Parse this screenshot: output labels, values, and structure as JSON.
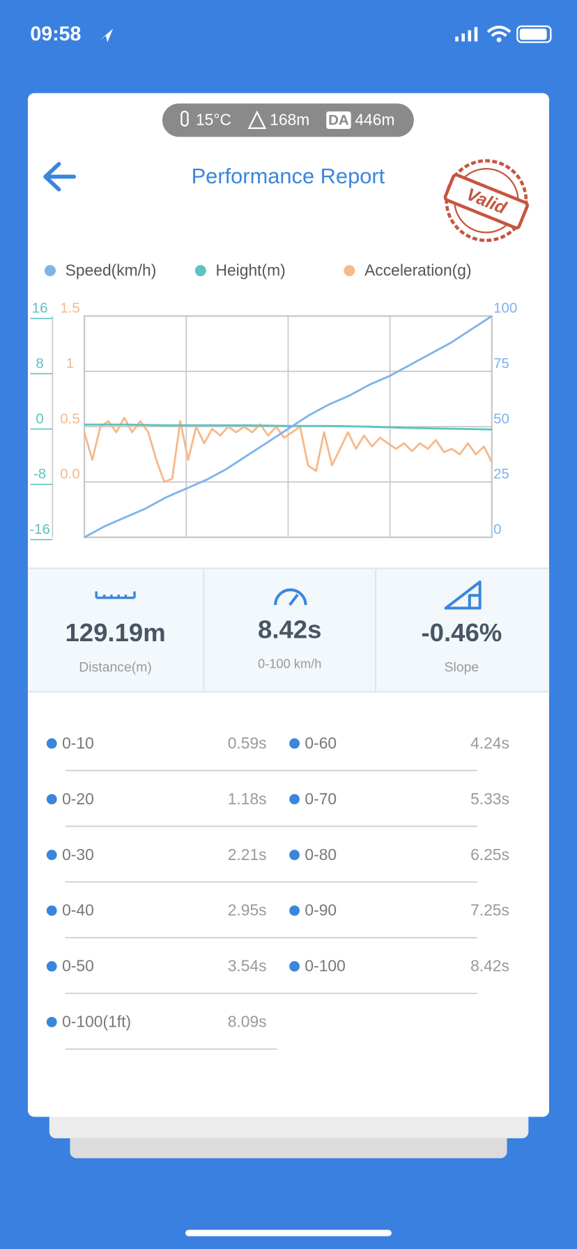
{
  "status_bar": {
    "time": "09:58"
  },
  "conditions": {
    "temperature": "15°C",
    "altitude": "168m",
    "da_badge": "DA",
    "density_altitude": "446m"
  },
  "header": {
    "title": "Performance Report",
    "stamp": "Valid"
  },
  "chart_data": {
    "type": "line",
    "grid": true,
    "series": [
      {
        "name": "Speed(km/h)",
        "color": "#7fb3ea",
        "axis": "y2",
        "values": [
          0,
          5,
          9,
          13,
          18,
          22,
          26,
          31,
          37,
          43,
          49,
          55,
          60,
          64,
          69,
          73,
          78,
          83,
          88,
          94,
          100
        ]
      },
      {
        "name": "Height(m)",
        "color": "#5bc4c0",
        "values": [
          0.3,
          0.3,
          0.2,
          0.2,
          0.2,
          0.1,
          0.1,
          0,
          -0.2,
          -0.3,
          -0.4
        ]
      },
      {
        "name": "Acceleration(g)",
        "color": "#f6b98a",
        "axis": "y3",
        "values": [
          0.45,
          0.2,
          0.5,
          0.55,
          0.45,
          0.58,
          0.45,
          0.55,
          0.45,
          0.2,
          0.0,
          0.03,
          0.55,
          0.2,
          0.5,
          0.35,
          0.48,
          0.42,
          0.5,
          0.45,
          0.5,
          0.45,
          0.52,
          0.42,
          0.5,
          0.4,
          0.45,
          0.5,
          0.15,
          0.1,
          0.45,
          0.15,
          0.3,
          0.45,
          0.3,
          0.42,
          0.32,
          0.4,
          0.35,
          0.3,
          0.35,
          0.28,
          0.35,
          0.3,
          0.38,
          0.27,
          0.3,
          0.25,
          0.35,
          0.25,
          0.32,
          0.18
        ]
      }
    ],
    "ylim": [
      -16,
      16
    ],
    "yticks": [
      16,
      8,
      0,
      -8,
      -16
    ],
    "y3lim": [
      -0.5,
      1.5
    ],
    "y3ticks": [
      1.5,
      1,
      0.5,
      {
        "value": 0,
        "label": "0.0"
      }
    ],
    "y2lim": [
      0,
      100
    ],
    "y2ticks": [
      100,
      75,
      50,
      25,
      0
    ]
  },
  "stats": [
    {
      "value": "129.19m",
      "label": "Distance(m)"
    },
    {
      "value": "8.42s",
      "label": "0-100 km/h"
    },
    {
      "value": "-0.46%",
      "label": "Slope"
    }
  ],
  "splits": [
    {
      "label": "0-10",
      "time": "0.59s"
    },
    {
      "label": "0-60",
      "time": "4.24s"
    },
    {
      "label": "0-20",
      "time": "1.18s"
    },
    {
      "label": "0-70",
      "time": "5.33s"
    },
    {
      "label": "0-30",
      "time": "2.21s"
    },
    {
      "label": "0-80",
      "time": "6.25s"
    },
    {
      "label": "0-40",
      "time": "2.95s"
    },
    {
      "label": "0-90",
      "time": "7.25s"
    },
    {
      "label": "0-50",
      "time": "3.54s"
    },
    {
      "label": "0-100",
      "time": "8.42s"
    },
    {
      "label": "0-100(1ft)",
      "time": "8.09s"
    }
  ]
}
